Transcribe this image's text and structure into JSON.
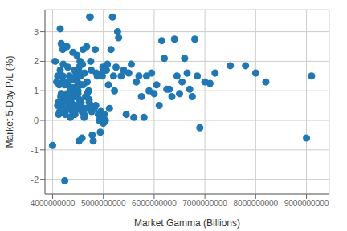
{
  "chart_data": {
    "type": "scatter",
    "xlabel": "Market Gamma (Billions)",
    "ylabel": "Market 5-Day P/L (%)",
    "xlim": [
      3850000000.0,
      9450000000.0
    ],
    "ylim": [
      -2.5,
      3.75
    ],
    "xticks": [
      4000000000.0,
      5000000000.0,
      6000000000.0,
      7000000000.0,
      8000000000.0,
      9000000000.0
    ],
    "yticks": [
      -2,
      -1,
      0,
      1,
      2,
      3
    ],
    "grid": true,
    "color": "#1f77b4",
    "x": [
      4000000000.0,
      4050000000.0,
      4100000000.0,
      4120000000.0,
      4150000000.0,
      4180000000.0,
      4200000000.0,
      4210000000.0,
      4220000000.0,
      4230000000.0,
      4250000000.0,
      4260000000.0,
      4270000000.0,
      4280000000.0,
      4290000000.0,
      4300000000.0,
      4310000000.0,
      4320000000.0,
      4330000000.0,
      4340000000.0,
      4350000000.0,
      4360000000.0,
      4370000000.0,
      4380000000.0,
      4390000000.0,
      4400000000.0,
      4410000000.0,
      4420000000.0,
      4430000000.0,
      4440000000.0,
      4450000000.0,
      4460000000.0,
      4470000000.0,
      4480000000.0,
      4490000000.0,
      4500000000.0,
      4510000000.0,
      4520000000.0,
      4530000000.0,
      4540000000.0,
      4550000000.0,
      4560000000.0,
      4570000000.0,
      4580000000.0,
      4590000000.0,
      4600000000.0,
      4620000000.0,
      4630000000.0,
      4650000000.0,
      4670000000.0,
      4680000000.0,
      4700000000.0,
      4710000000.0,
      4720000000.0,
      4730000000.0,
      4740000000.0,
      4750000000.0,
      4760000000.0,
      4770000000.0,
      4780000000.0,
      4800000000.0,
      4820000000.0,
      4840000000.0,
      4850000000.0,
      4860000000.0,
      4880000000.0,
      4900000000.0,
      4920000000.0,
      4940000000.0,
      4950000000.0,
      4960000000.0,
      4970000000.0,
      4980000000.0,
      4990000000.0,
      5000000000.0,
      5020000000.0,
      5040000000.0,
      5060000000.0,
      5080000000.0,
      5100000000.0,
      5120000000.0,
      5150000000.0,
      5180000000.0,
      5200000000.0,
      5220000000.0,
      5250000000.0,
      5280000000.0,
      5300000000.0,
      5350000000.0,
      5400000000.0,
      5450000000.0,
      5500000000.0,
      5550000000.0,
      5600000000.0,
      5650000000.0,
      5700000000.0,
      5750000000.0,
      5800000000.0,
      5850000000.0,
      5900000000.0,
      5950000000.0,
      6000000000.0,
      6050000000.0,
      6100000000.0,
      6150000000.0,
      6200000000.0,
      6250000000.0,
      6300000000.0,
      6350000000.0,
      6400000000.0,
      6450000000.0,
      6500000000.0,
      6550000000.0,
      6600000000.0,
      6650000000.0,
      6700000000.0,
      6750000000.0,
      6800000000.0,
      6850000000.0,
      6900000000.0,
      7000000000.0,
      7100000000.0,
      7200000000.0,
      7500000000.0,
      7800000000.0,
      8000000000.0,
      8200000000.0,
      9000000000.0,
      9100000000.0,
      4150000000.0,
      4170000000.0,
      4190000000.0,
      4240000000.0,
      4520000000.0,
      4550000000.0,
      4580000000.0,
      4620000000.0,
      4100000000.0,
      4130000000.0,
      4160000000.0,
      4200000000.0,
      4250000000.0,
      4300000000.0,
      4350000000.0,
      4400000000.0,
      4450000000.0,
      4500000000.0,
      4150000000.0,
      4220000000.0,
      4280000000.0,
      4320000000.0,
      4360000000.0,
      4420000000.0,
      4460000000.0,
      4520000000.0,
      4560000000.0,
      4600000000.0,
      4640000000.0,
      4680000000.0,
      4720000000.0,
      4760000000.0,
      4080000000.0,
      4110000000.0,
      4140000000.0,
      4170000000.0,
      4200000000.0,
      4230000000.0,
      4260000000.0,
      4290000000.0,
      4320000000.0,
      4350000000.0,
      4380000000.0,
      4410000000.0,
      4440000000.0,
      4470000000.0,
      4500000000.0,
      4530000000.0
    ],
    "values": [
      -0.85,
      2.0,
      1.5,
      0.2,
      1.7,
      0.5,
      2.4,
      1.9,
      0.8,
      2.5,
      0.3,
      1.3,
      2.5,
      2.5,
      0.9,
      1.8,
      1.2,
      0.7,
      1.5,
      0.4,
      0.1,
      1.0,
      0.6,
      1.4,
      0.3,
      2.3,
      1.1,
      0.8,
      1.7,
      0.2,
      0.5,
      1.6,
      0.9,
      2.2,
      1.3,
      1.0,
      0.4,
      1.8,
      0.7,
      2.0,
      1.5,
      0.6,
      1.2,
      0.3,
      1.9,
      2.4,
      0.1,
      1.6,
      0.8,
      2.5,
      1.3,
      0.4,
      1.0,
      0.6,
      3.5,
      3.5,
      2.0,
      1.7,
      0.3,
      -0.5,
      -0.7,
      0.4,
      2.4,
      0.5,
      1.6,
      1.5,
      0.2,
      0.0,
      -0.4,
      0.3,
      0.1,
      1.6,
      1.5,
      1.8,
      -0.1,
      0.2,
      0.0,
      1.7,
      1.9,
      1.2,
      0.4,
      2.4,
      3.5,
      1.5,
      1.0,
      1.8,
      3.0,
      2.8,
      1.5,
      1.7,
      0.2,
      1.6,
      1.9,
      0.1,
      1.3,
      1.5,
      0.8,
      0.1,
      1.5,
      1.0,
      1.6,
      0.9,
      1.2,
      0.5,
      2.7,
      2.1,
      1.05,
      1.05,
      0.8,
      2.75,
      1.5,
      0.9,
      1.3,
      2.1,
      1.6,
      1.05,
      0.8,
      2.75,
      1.5,
      -0.25,
      1.3,
      1.25,
      1.6,
      1.85,
      1.85,
      1.6,
      1.3,
      -0.6,
      1.5,
      3.1,
      2.6,
      0.8,
      -2.05,
      -0.7,
      1.6,
      -0.6,
      0.2,
      0.5,
      1.2,
      0.8,
      1.3,
      0.2,
      0.6,
      0.9,
      1.4,
      0.5,
      0.9,
      1.5,
      0.7,
      1.2,
      0.9,
      0.5,
      1.1,
      0.8,
      1.5,
      0.6,
      1.2,
      0.4,
      0.9,
      0.7,
      0.5,
      1.3,
      0.6,
      0.3,
      0.9,
      1.5,
      1.2,
      0.7,
      0.4,
      0.6,
      1.1,
      0.8,
      1.4,
      0.3,
      0.8,
      1.2,
      0.5
    ]
  }
}
